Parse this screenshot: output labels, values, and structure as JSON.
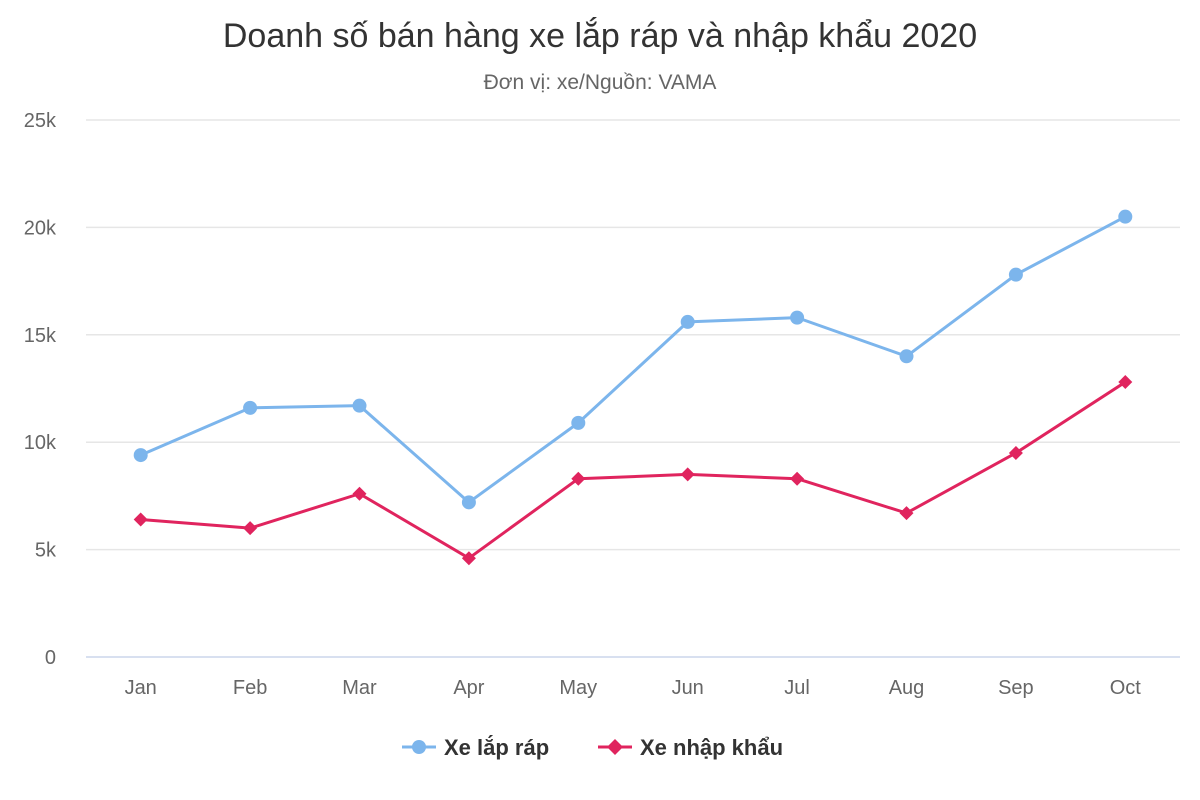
{
  "chart_data": {
    "type": "line",
    "title": "Doanh số bán hàng xe lắp ráp và nhập khẩu 2020",
    "subtitle": "Đơn vị: xe/Nguồn: VAMA",
    "categories": [
      "Jan",
      "Feb",
      "Mar",
      "Apr",
      "May",
      "Jun",
      "Jul",
      "Aug",
      "Sep",
      "Oct"
    ],
    "y_ticks": [
      "0",
      "5k",
      "10k",
      "15k",
      "20k",
      "25k"
    ],
    "ylim": [
      0,
      25000
    ],
    "grid": true,
    "legend_position": "bottom-center",
    "series": [
      {
        "name": "Xe lắp ráp",
        "color": "#7cb5ec",
        "marker": "circle",
        "values": [
          9400,
          11600,
          11700,
          7200,
          10900,
          15600,
          15800,
          14000,
          17800,
          20500
        ]
      },
      {
        "name": "Xe nhập khẩu",
        "color": "#e0245e",
        "marker": "diamond",
        "values": [
          6400,
          6000,
          7600,
          4600,
          8300,
          8500,
          8300,
          6700,
          9500,
          12800
        ]
      }
    ]
  }
}
